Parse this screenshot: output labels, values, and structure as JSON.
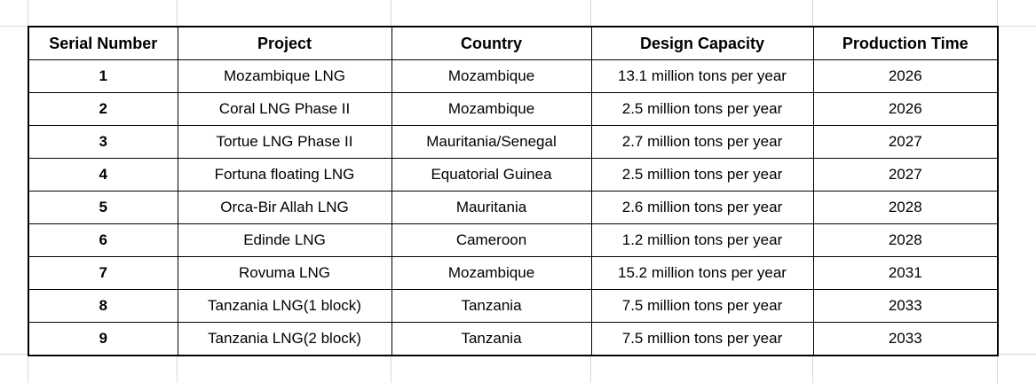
{
  "table": {
    "headers": [
      "Serial Number",
      "Project",
      "Country",
      "Design Capacity",
      "Production Time"
    ],
    "rows": [
      {
        "serial": "1",
        "project": "Mozambique LNG",
        "country": "Mozambique",
        "capacity": "13.1 million tons per year",
        "time": "2026"
      },
      {
        "serial": "2",
        "project": "Coral LNG Phase II",
        "country": "Mozambique",
        "capacity": "2.5 million tons per year",
        "time": "2026"
      },
      {
        "serial": "3",
        "project": "Tortue LNG Phase II",
        "country": "Mauritania/Senegal",
        "capacity": "2.7 million tons per year",
        "time": "2027"
      },
      {
        "serial": "4",
        "project": "Fortuna floating LNG",
        "country": "Equatorial Guinea",
        "capacity": "2.5 million tons per year",
        "time": "2027"
      },
      {
        "serial": "5",
        "project": "Orca-Bir Allah LNG",
        "country": "Mauritania",
        "capacity": "2.6 million tons per year",
        "time": "2028"
      },
      {
        "serial": "6",
        "project": "Edinde LNG",
        "country": "Cameroon",
        "capacity": "1.2 million tons per year",
        "time": "2028"
      },
      {
        "serial": "7",
        "project": "Rovuma LNG",
        "country": "Mozambique",
        "capacity": "15.2 million tons per year",
        "time": "2031"
      },
      {
        "serial": "8",
        "project": "Tanzania LNG(1 block)",
        "country": "Tanzania",
        "capacity": "7.5 million tons per year",
        "time": "2033"
      },
      {
        "serial": "9",
        "project": "Tanzania LNG(2 block)",
        "country": "Tanzania",
        "capacity": "7.5 million tons per year",
        "time": "2033"
      }
    ]
  }
}
